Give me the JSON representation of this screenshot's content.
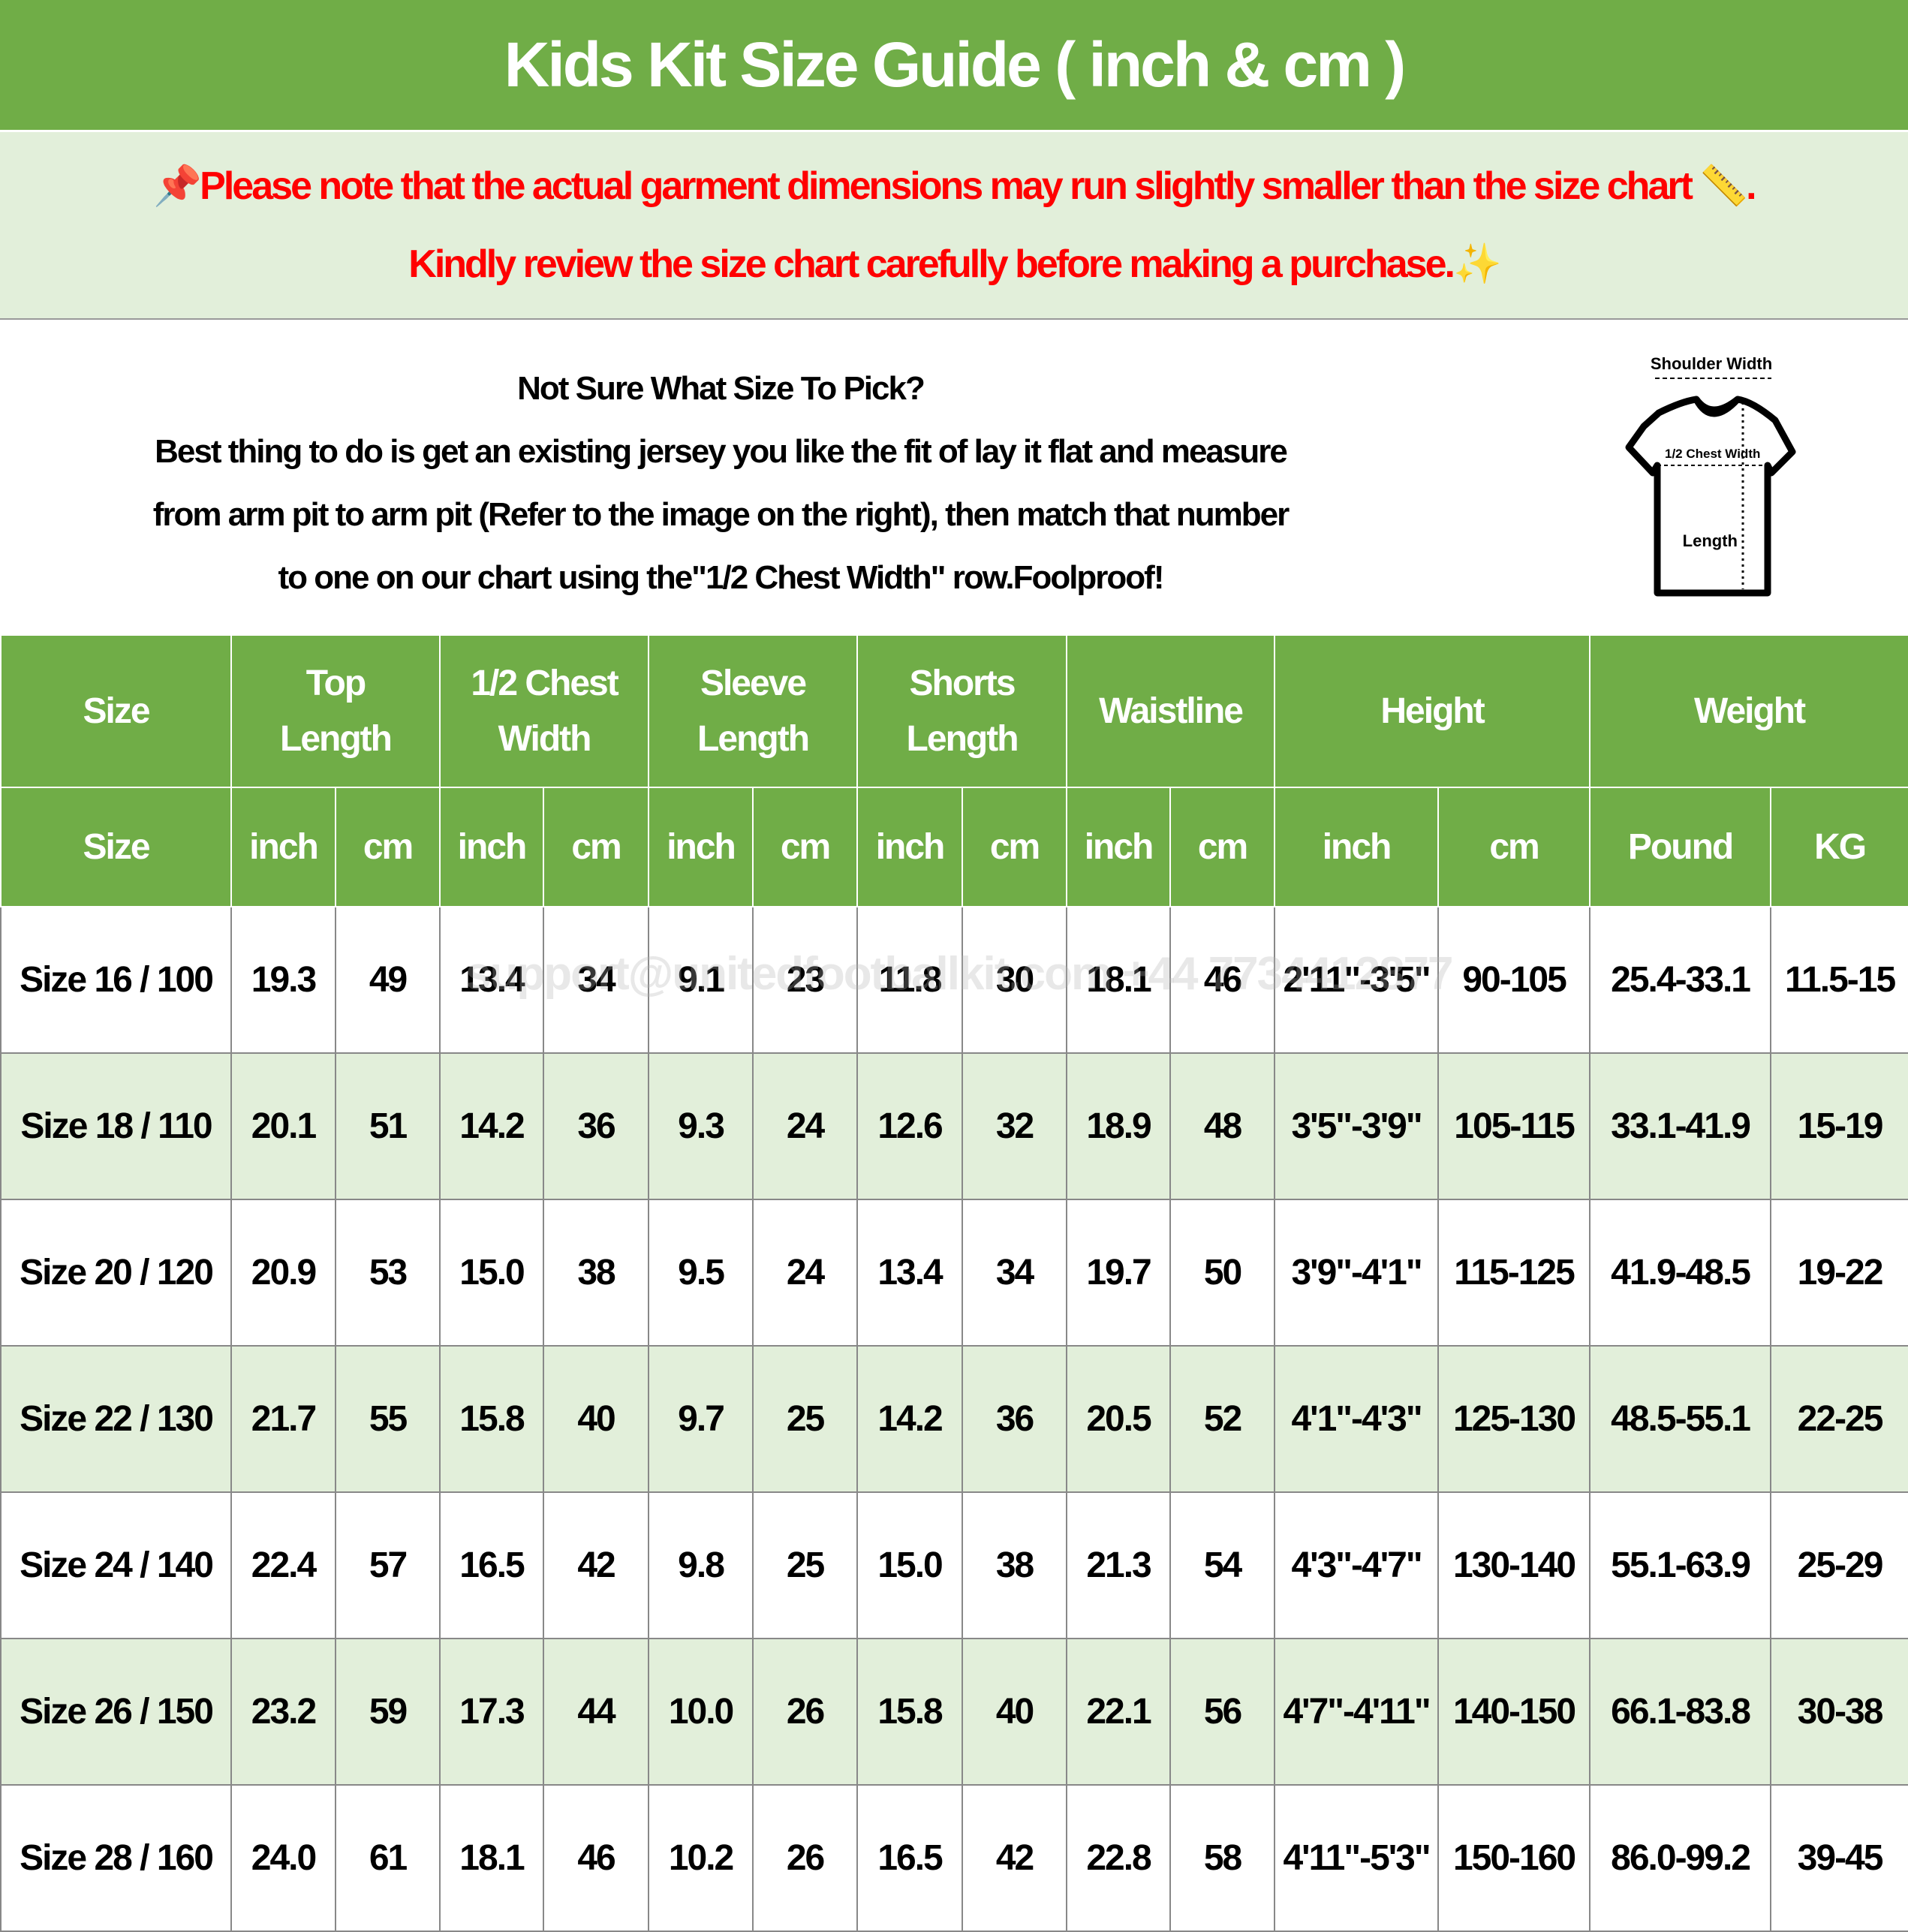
{
  "title": "Kids Kit Size Guide ( inch & cm )",
  "notice": {
    "line1": "Please note that the actual garment dimensions may run slightly smaller than the size chart",
    "line1_end": ".",
    "line2": "Kindly review the size chart carefully before making a purchase.",
    "icons": [
      "pushpin-icon",
      "ruler-icon",
      "sparkles-icon"
    ],
    "color": "#FF0000"
  },
  "info": {
    "heading": "Not Sure What Size To Pick?",
    "lines": [
      "Best thing to do is get an existing jersey you like the fit of lay it flat and measure",
      "from arm pit to arm pit (Refer to the image on the right), then match that number",
      "to one on our chart using the\"1/2 Chest Width\" row.Foolproof!"
    ]
  },
  "diagram": {
    "shoulder": "Shoulder Width",
    "chest": "1/2 Chest Width",
    "length": "Length"
  },
  "watermark": "support@unitedfootballkit.com +44 7734412877",
  "colors": {
    "header_green": "#70AD47",
    "row_alt": "#E2EFDA"
  },
  "table": {
    "groups": [
      "Size",
      "Top Length",
      "1/2 Chest Width",
      "Sleeve Length",
      "Shorts Length",
      "Waistline",
      "Height",
      "Weight"
    ],
    "subheaders": [
      "Size",
      "inch",
      "cm",
      "inch",
      "cm",
      "inch",
      "cm",
      "inch",
      "cm",
      "inch",
      "cm",
      "inch",
      "cm",
      "Pound",
      "KG"
    ],
    "rows": [
      [
        "Size 16 / 100",
        "19.3",
        "49",
        "13.4",
        "34",
        "9.1",
        "23",
        "11.8",
        "30",
        "18.1",
        "46",
        "2'11\"-3'5\"",
        "90-105",
        "25.4-33.1",
        "11.5-15"
      ],
      [
        "Size 18 / 110",
        "20.1",
        "51",
        "14.2",
        "36",
        "9.3",
        "24",
        "12.6",
        "32",
        "18.9",
        "48",
        "3'5\"-3'9\"",
        "105-115",
        "33.1-41.9",
        "15-19"
      ],
      [
        "Size 20 / 120",
        "20.9",
        "53",
        "15.0",
        "38",
        "9.5",
        "24",
        "13.4",
        "34",
        "19.7",
        "50",
        "3'9\"-4'1\"",
        "115-125",
        "41.9-48.5",
        "19-22"
      ],
      [
        "Size 22 / 130",
        "21.7",
        "55",
        "15.8",
        "40",
        "9.7",
        "25",
        "14.2",
        "36",
        "20.5",
        "52",
        "4'1\"-4'3\"",
        "125-130",
        "48.5-55.1",
        "22-25"
      ],
      [
        "Size 24 / 140",
        "22.4",
        "57",
        "16.5",
        "42",
        "9.8",
        "25",
        "15.0",
        "38",
        "21.3",
        "54",
        "4'3\"-4'7\"",
        "130-140",
        "55.1-63.9",
        "25-29"
      ],
      [
        "Size 26 / 150",
        "23.2",
        "59",
        "17.3",
        "44",
        "10.0",
        "26",
        "15.8",
        "40",
        "22.1",
        "56",
        "4'7\"-4'11\"",
        "140-150",
        "66.1-83.8",
        "30-38"
      ],
      [
        "Size 28 / 160",
        "24.0",
        "61",
        "18.1",
        "46",
        "10.2",
        "26",
        "16.5",
        "42",
        "22.8",
        "58",
        "4'11\"-5'3\"",
        "150-160",
        "86.0-99.2",
        "39-45"
      ]
    ]
  }
}
